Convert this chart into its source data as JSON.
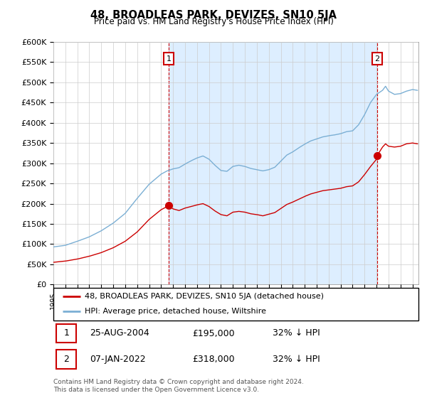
{
  "title": "48, BROADLEAS PARK, DEVIZES, SN10 5JA",
  "subtitle": "Price paid vs. HM Land Registry's House Price Index (HPI)",
  "ylabel_ticks": [
    "£0",
    "£50K",
    "£100K",
    "£150K",
    "£200K",
    "£250K",
    "£300K",
    "£350K",
    "£400K",
    "£450K",
    "£500K",
    "£550K",
    "£600K"
  ],
  "ylim": [
    0,
    600000
  ],
  "xlim_start": 1995.0,
  "xlim_end": 2025.5,
  "red_line_color": "#cc0000",
  "blue_line_color": "#7bafd4",
  "shade_color": "#ddeeff",
  "dashed_red_color": "#cc0000",
  "legend_label_red": "48, BROADLEAS PARK, DEVIZES, SN10 5JA (detached house)",
  "legend_label_blue": "HPI: Average price, detached house, Wiltshire",
  "transaction1_date": 2004.65,
  "transaction1_price": 195000,
  "transaction2_date": 2022.03,
  "transaction2_price": 318000,
  "footer": "Contains HM Land Registry data © Crown copyright and database right 2024.\nThis data is licensed under the Open Government Licence v3.0.",
  "table_row1": [
    "1",
    "25-AUG-2004",
    "£195,000",
    "32% ↓ HPI"
  ],
  "table_row2": [
    "2",
    "07-JAN-2022",
    "£318,000",
    "32% ↓ HPI"
  ]
}
